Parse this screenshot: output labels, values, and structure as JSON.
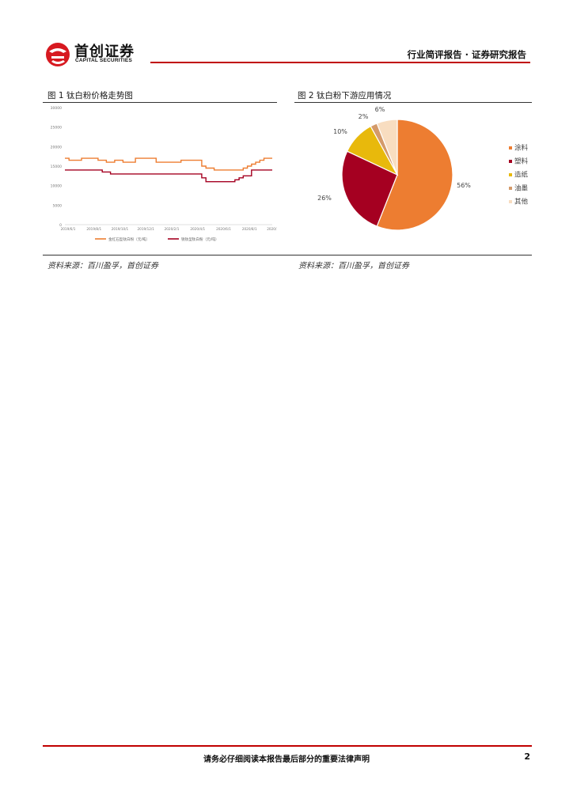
{
  "header": {
    "logo_cn": "首创证券",
    "logo_en": "CAPITAL SECURITIES",
    "title": "行业简评报告 · 证券研究报告"
  },
  "figures": {
    "fig1": {
      "title": "图 1 钛白粉价格走势图",
      "source": "资料来源：百川盈孚，首创证券"
    },
    "fig2": {
      "title": "图 2 钛白粉下游应用情况",
      "source": "资料来源：百川盈孚，首创证券"
    }
  },
  "chart_data": [
    {
      "type": "line",
      "yticks": [
        "30000",
        "25000",
        "20000",
        "15000",
        "10000",
        "5000",
        "0"
      ],
      "ylim": [
        0,
        30000
      ],
      "xticks": [
        "2019/6/1",
        "2019/8/1",
        "2019/10/1",
        "2019/12/1",
        "2020/2/1",
        "2020/4/1",
        "2020/6/1",
        "2020/8/1",
        "2020/10/1"
      ],
      "series": [
        {
          "name": "金红石型钛白粉（元/吨）",
          "color": "#ed7d31",
          "values": [
            17000,
            16500,
            16500,
            16500,
            17000,
            17000,
            17000,
            17000,
            16500,
            16500,
            16000,
            16000,
            16500,
            16500,
            16000,
            16000,
            16000,
            17000,
            17000,
            17000,
            17000,
            17000,
            16000,
            16000,
            16000,
            16000,
            16000,
            16000,
            16500,
            16500,
            16500,
            16500,
            16500,
            15000,
            14500,
            14500,
            14000,
            14000,
            14000,
            14000,
            14000,
            14000,
            14000,
            14500,
            15000,
            15500,
            16000,
            16500,
            17000,
            17000
          ]
        },
        {
          "name": "锐钛型钛白粉（元/吨）",
          "color": "#a50021",
          "values": [
            14000,
            14000,
            14000,
            14000,
            14000,
            14000,
            14000,
            14000,
            14000,
            13500,
            13500,
            13000,
            13000,
            13000,
            13000,
            13000,
            13000,
            13000,
            13000,
            13000,
            13000,
            13000,
            13000,
            13000,
            13000,
            13000,
            13000,
            13000,
            13000,
            13000,
            13000,
            13000,
            13000,
            12000,
            11000,
            11000,
            11000,
            11000,
            11000,
            11000,
            11000,
            11500,
            12000,
            12500,
            12500,
            14000,
            14000,
            14000,
            14000,
            14000
          ]
        }
      ]
    },
    {
      "type": "pie",
      "slices": [
        {
          "label": "涂料",
          "value": 56,
          "display": "56%",
          "color": "#ed7d31"
        },
        {
          "label": "塑料",
          "value": 26,
          "display": "26%",
          "color": "#a50021"
        },
        {
          "label": "造纸",
          "value": 10,
          "display": "10%",
          "color": "#e8b90c"
        },
        {
          "label": "油墨",
          "value": 2,
          "display": "2%",
          "color": "#d49a6a"
        },
        {
          "label": "其他",
          "value": 6,
          "display": "6%",
          "color": "#f8ddc0"
        }
      ]
    }
  ],
  "footer": {
    "disclaimer": "请务必仔细阅读本报告最后部分的重要法律声明",
    "page": "2"
  }
}
